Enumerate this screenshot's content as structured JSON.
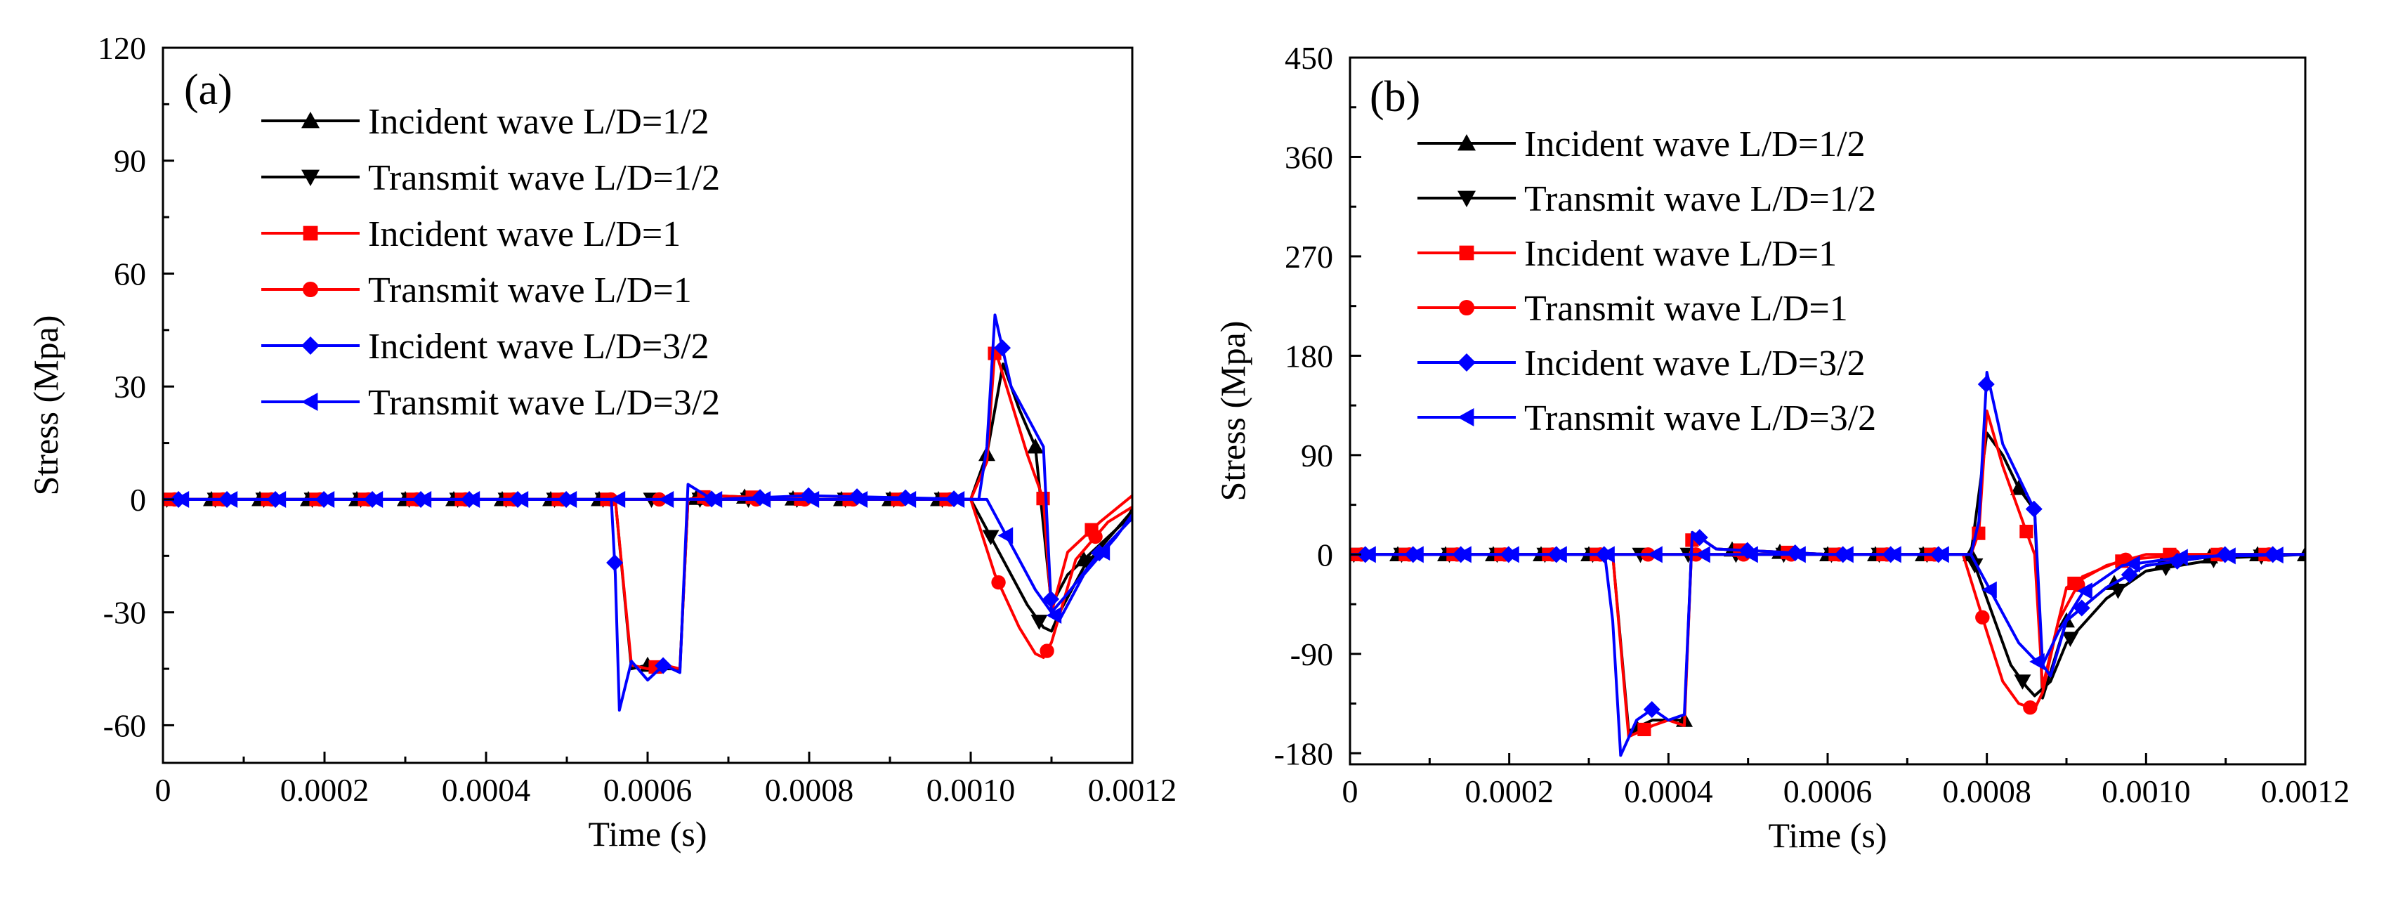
{
  "chart_data": [
    {
      "type": "line",
      "panel_label": "(a)",
      "xlabel": "Time (s)",
      "ylabel": "Stress (Mpa)",
      "xlim": [
        0,
        0.0012
      ],
      "ylim": [
        -70,
        120
      ],
      "xticks": [
        "0",
        "0.0002",
        "0.0004",
        "0.0006",
        "0.0008",
        "0.0010",
        "0.0012"
      ],
      "xtick_values": [
        0,
        0.0002,
        0.0004,
        0.0006,
        0.0008,
        0.001,
        0.0012
      ],
      "yticks": [
        "120",
        "90",
        "60",
        "30",
        "0",
        "-30",
        "-60"
      ],
      "ytick_values": [
        120,
        90,
        60,
        30,
        0,
        -30,
        -60
      ],
      "legend_position": "top-left",
      "series": [
        {
          "name": "Incident wave L/D=1/2",
          "color": "#000000",
          "marker": "triangle-up",
          "x": [
            0,
            0.00056,
            0.00058,
            0.0006,
            0.00062,
            0.00064,
            0.00065,
            0.00068,
            0.0008,
            0.001,
            0.00102,
            0.00104,
            0.00106,
            0.00108,
            0.0011,
            0.00112,
            0.00116,
            0.0012
          ],
          "y": [
            0,
            0,
            -45,
            -44,
            -45,
            -45,
            0,
            1,
            0,
            0,
            12,
            36,
            24,
            14,
            -28,
            -20,
            -12,
            -4
          ]
        },
        {
          "name": "Transmit wave L/D=1/2",
          "color": "#000000",
          "marker": "triangle-down",
          "x": [
            0,
            0.001,
            0.00104,
            0.00107,
            0.00109,
            0.0011,
            0.00111,
            0.00114,
            0.00118,
            0.0012
          ],
          "y": [
            0,
            0,
            -16,
            -28,
            -34,
            -35,
            -30,
            -18,
            -8,
            -3
          ]
        },
        {
          "name": "Incident wave L/D=1",
          "color": "#ff0000",
          "marker": "square",
          "x": [
            0,
            0.00056,
            0.00058,
            0.0006,
            0.00062,
            0.00064,
            0.00065,
            0.00068,
            0.0008,
            0.001,
            0.00102,
            0.00103,
            0.00105,
            0.00107,
            0.00109,
            0.0011,
            0.00112,
            0.00116,
            0.0012
          ],
          "y": [
            0,
            0,
            -44,
            -45,
            -44,
            -45,
            0,
            1,
            0,
            0,
            10,
            40,
            26,
            12,
            0,
            -30,
            -14,
            -6,
            1
          ]
        },
        {
          "name": "Transmit wave L/D=1",
          "color": "#ff0000",
          "marker": "circle",
          "x": [
            0,
            0.001,
            0.00103,
            0.00106,
            0.00108,
            0.00109,
            0.0011,
            0.00113,
            0.00117,
            0.0012
          ],
          "y": [
            0,
            0,
            -20,
            -34,
            -41,
            -42,
            -38,
            -16,
            -6,
            -2
          ]
        },
        {
          "name": "Incident wave L/D=3/2",
          "color": "#0000ff",
          "marker": "diamond",
          "x": [
            0,
            0.000555,
            0.00056,
            0.000565,
            0.00058,
            0.0006,
            0.00062,
            0.00064,
            0.00065,
            0.00068,
            0.0008,
            0.00101,
            0.00102,
            0.00103,
            0.00105,
            0.00107,
            0.00109,
            0.0011,
            0.00112,
            0.00116,
            0.0012
          ],
          "y": [
            0,
            0,
            -20,
            -56,
            -43,
            -48,
            -44,
            -46,
            4,
            0,
            1,
            0,
            14,
            49,
            30,
            22,
            14,
            -30,
            -25,
            -14,
            -5
          ]
        },
        {
          "name": "Transmit wave L/D=3/2",
          "color": "#0000ff",
          "marker": "triangle-left",
          "x": [
            0,
            0.00102,
            0.00105,
            0.00108,
            0.0011,
            0.00111,
            0.00114,
            0.00118,
            0.0012
          ],
          "y": [
            0,
            0,
            -12,
            -24,
            -30,
            -32,
            -20,
            -10,
            -4
          ]
        }
      ]
    },
    {
      "type": "line",
      "panel_label": "(b)",
      "xlabel": "Time (s)",
      "ylabel": "Stress (Mpa)",
      "xlim": [
        0,
        0.0012
      ],
      "ylim": [
        -190,
        450
      ],
      "xticks": [
        "0",
        "0.0002",
        "0.0004",
        "0.0006",
        "0.0008",
        "0.0010",
        "0.0012"
      ],
      "xtick_values": [
        0,
        0.0002,
        0.0004,
        0.0006,
        0.0008,
        0.001,
        0.0012
      ],
      "yticks": [
        "450",
        "360",
        "270",
        "180",
        "90",
        "0",
        "-90",
        "-180"
      ],
      "ytick_values": [
        450,
        360,
        270,
        180,
        90,
        0,
        -90,
        -180
      ],
      "legend_position": "top-left",
      "series": [
        {
          "name": "Incident wave L/D=1/2",
          "color": "#000000",
          "marker": "triangle-up",
          "x": [
            0,
            0.00033,
            0.00035,
            0.00038,
            0.0004,
            0.00042,
            0.00043,
            0.00046,
            0.0006,
            0.00078,
            0.0008,
            0.00082,
            0.00084,
            0.00086,
            0.00087,
            0.0009,
            0.00095,
            0.001,
            0.0011,
            0.0012
          ],
          "y": [
            0,
            0,
            -160,
            -150,
            -150,
            -150,
            20,
            5,
            0,
            0,
            110,
            90,
            60,
            40,
            -130,
            -60,
            -30,
            -10,
            0,
            0
          ]
        },
        {
          "name": "Transmit wave L/D=1/2",
          "color": "#000000",
          "marker": "triangle-down",
          "x": [
            0,
            0.00078,
            0.00081,
            0.00083,
            0.00085,
            0.00086,
            0.00088,
            0.0009,
            0.00095,
            0.001,
            0.0011,
            0.0012
          ],
          "y": [
            0,
            0,
            -60,
            -100,
            -120,
            -128,
            -115,
            -80,
            -40,
            -15,
            -3,
            0
          ]
        },
        {
          "name": "Incident wave L/D=1",
          "color": "#ff0000",
          "marker": "square",
          "x": [
            0,
            0.00033,
            0.00035,
            0.00038,
            0.0004,
            0.00042,
            0.00043,
            0.00046,
            0.0006,
            0.00078,
            0.00079,
            0.0008,
            0.00082,
            0.00084,
            0.00085,
            0.00086,
            0.00087,
            0.0009,
            0.00095,
            0.001,
            0.0011,
            0.0012
          ],
          "y": [
            0,
            0,
            -165,
            -155,
            -150,
            -155,
            20,
            5,
            0,
            0,
            20,
            130,
            80,
            40,
            20,
            0,
            -120,
            -30,
            -10,
            0,
            0,
            0
          ]
        },
        {
          "name": "Transmit wave L/D=1",
          "color": "#ff0000",
          "marker": "circle",
          "x": [
            0,
            0.00077,
            0.0008,
            0.00082,
            0.00084,
            0.00086,
            0.00087,
            0.00089,
            0.00092,
            0.00097,
            0.00105,
            0.0012
          ],
          "y": [
            0,
            0,
            -70,
            -115,
            -135,
            -140,
            -125,
            -60,
            -20,
            -5,
            0,
            0
          ]
        },
        {
          "name": "Incident wave L/D=3/2",
          "color": "#0000ff",
          "marker": "diamond",
          "x": [
            0,
            0.00032,
            0.00033,
            0.00034,
            0.00036,
            0.00038,
            0.0004,
            0.00042,
            0.00043,
            0.00046,
            0.0006,
            0.00078,
            0.00079,
            0.0008,
            0.00082,
            0.00084,
            0.00086,
            0.00087,
            0.00088,
            0.0009,
            0.00095,
            0.001,
            0.0011,
            0.0012
          ],
          "y": [
            0,
            0,
            -60,
            -182,
            -150,
            -140,
            -150,
            -145,
            20,
            5,
            0,
            0,
            30,
            165,
            100,
            70,
            40,
            -100,
            -110,
            -60,
            -30,
            -10,
            0,
            0
          ]
        },
        {
          "name": "Transmit wave L/D=3/2",
          "color": "#0000ff",
          "marker": "triangle-left",
          "x": [
            0,
            0.00078,
            0.00081,
            0.00084,
            0.00086,
            0.00087,
            0.00089,
            0.00092,
            0.00097,
            0.00105,
            0.0012
          ],
          "y": [
            0,
            0,
            -40,
            -80,
            -95,
            -100,
            -70,
            -35,
            -10,
            -2,
            0
          ]
        }
      ]
    }
  ]
}
